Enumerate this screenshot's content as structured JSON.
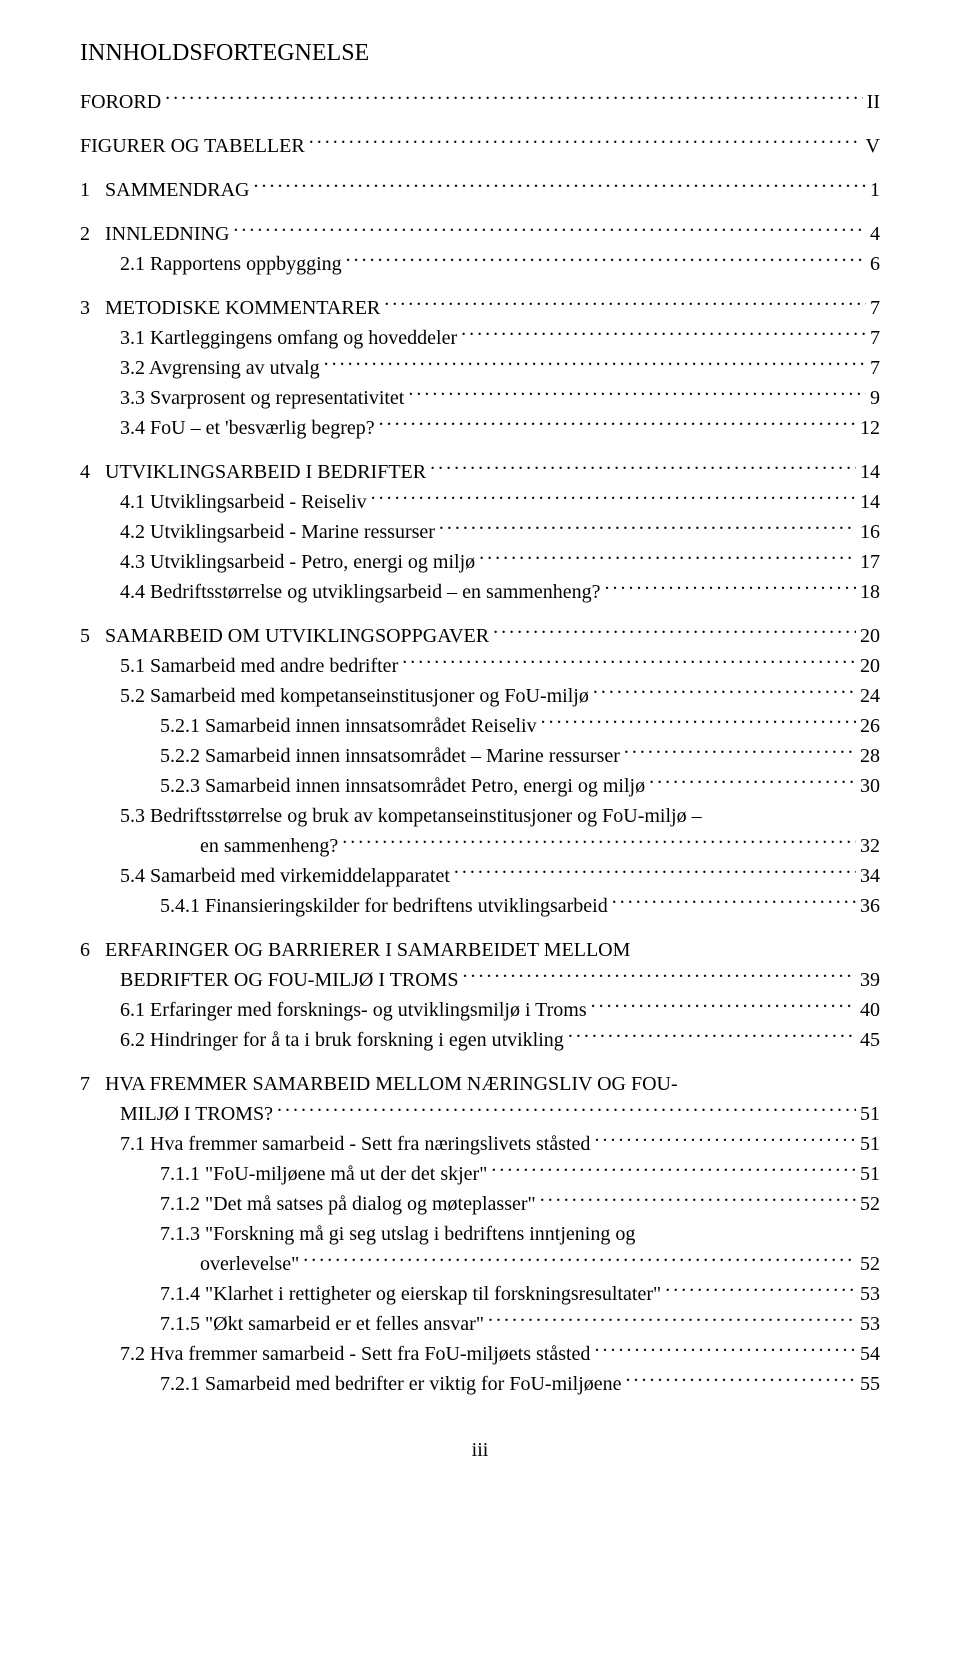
{
  "heading": "INNHOLDSFORTEGNELSE",
  "footer": "iii",
  "toc": [
    {
      "level": 0,
      "label": "FORORD",
      "page": "II",
      "group_start": true
    },
    {
      "level": 0,
      "label": "FIGURER OG TABELLER",
      "page": "V",
      "group_start": true
    },
    {
      "level": 0,
      "label": "1   SAMMENDRAG",
      "page": "1",
      "group_start": true
    },
    {
      "level": 0,
      "label": "2   INNLEDNING",
      "page": "4",
      "group_start": true
    },
    {
      "level": 1,
      "label": "2.1 Rapportens oppbygging",
      "page": "6"
    },
    {
      "level": 0,
      "label": "3   METODISKE KOMMENTARER",
      "page": "7",
      "group_start": true
    },
    {
      "level": 1,
      "label": "3.1 Kartleggingens omfang og hoveddeler",
      "page": "7"
    },
    {
      "level": 1,
      "label": "3.2 Avgrensing av utvalg",
      "page": "7"
    },
    {
      "level": 1,
      "label": "3.3 Svarprosent og representativitet",
      "page": "9"
    },
    {
      "level": 1,
      "label": "3.4 FoU – et 'besværlig begrep?",
      "page": "12"
    },
    {
      "level": 0,
      "label": "4   UTVIKLINGSARBEID I BEDRIFTER",
      "page": "14",
      "group_start": true
    },
    {
      "level": 1,
      "label": "4.1 Utviklingsarbeid - Reiseliv",
      "page": "14"
    },
    {
      "level": 1,
      "label": "4.2 Utviklingsarbeid - Marine ressurser",
      "page": "16"
    },
    {
      "level": 1,
      "label": "4.3 Utviklingsarbeid - Petro, energi og miljø",
      "page": "17"
    },
    {
      "level": 1,
      "label": "4.4 Bedriftsstørrelse og utviklingsarbeid – en sammenheng?",
      "page": "18"
    },
    {
      "level": 0,
      "label": "5   SAMARBEID OM UTVIKLINGSOPPGAVER",
      "page": "20",
      "group_start": true
    },
    {
      "level": 1,
      "label": "5.1 Samarbeid med andre bedrifter",
      "page": "20"
    },
    {
      "level": 1,
      "label": "5.2 Samarbeid med kompetanseinstitusjoner og FoU-miljø",
      "page": "24"
    },
    {
      "level": 2,
      "label": "5.2.1 Samarbeid innen innsatsområdet Reiseliv",
      "page": "26"
    },
    {
      "level": 2,
      "label": "5.2.2 Samarbeid innen innsatsområdet – Marine ressurser",
      "page": "28"
    },
    {
      "level": 2,
      "label": "5.2.3 Samarbeid innen innsatsområdet Petro, energi og miljø",
      "page": "30"
    },
    {
      "level": 1,
      "label": "5.3 Bedriftsstørrelse og bruk av kompetanseinstitusjoner og FoU-miljø –",
      "cont": "en sammenheng?",
      "page": "32"
    },
    {
      "level": 1,
      "label": "5.4 Samarbeid med virkemiddelapparatet",
      "page": "34"
    },
    {
      "level": 2,
      "label": "5.4.1 Finansieringskilder for bedriftens utviklingsarbeid",
      "page": "36"
    },
    {
      "level": 0,
      "label": "6   ERFARINGER OG BARRIERER I SAMARBEIDET MELLOM",
      "cont_level0": "BEDRIFTER OG FOU-MILJØ I TROMS",
      "page": "39",
      "group_start": true
    },
    {
      "level": 1,
      "label": "6.1 Erfaringer med forsknings- og utviklingsmiljø i Troms",
      "page": "40"
    },
    {
      "level": 1,
      "label": "6.2 Hindringer for å ta i bruk forskning i egen utvikling",
      "page": "45"
    },
    {
      "level": 0,
      "label": "7   HVA FREMMER SAMARBEID MELLOM NÆRINGSLIV OG FOU-",
      "cont_level0": "MILJØ I TROMS?",
      "page": "51",
      "group_start": true
    },
    {
      "level": 1,
      "label": "7.1 Hva fremmer samarbeid - Sett fra næringslivets ståsted",
      "page": "51"
    },
    {
      "level": 2,
      "label": "7.1.1 \"FoU-miljøene må ut der det skjer\"",
      "page": "51"
    },
    {
      "level": 2,
      "label": "7.1.2 \"Det må satses på dialog og møteplasser\"",
      "page": "52"
    },
    {
      "level": 2,
      "label": "7.1.3 \"Forskning må gi seg utslag i bedriftens inntjening og",
      "cont": "overlevelse\"",
      "page": "52"
    },
    {
      "level": 2,
      "label": "7.1.4 \"Klarhet i rettigheter og eierskap til forskningsresultater\"",
      "page": "53"
    },
    {
      "level": 2,
      "label": "7.1.5 \"Økt samarbeid er et felles ansvar\"",
      "page": "53"
    },
    {
      "level": 1,
      "label": "7.2 Hva fremmer samarbeid - Sett fra FoU-miljøets ståsted",
      "page": "54"
    },
    {
      "level": 2,
      "label": "7.2.1 Samarbeid med bedrifter er viktig for FoU-miljøene",
      "page": "55"
    }
  ]
}
